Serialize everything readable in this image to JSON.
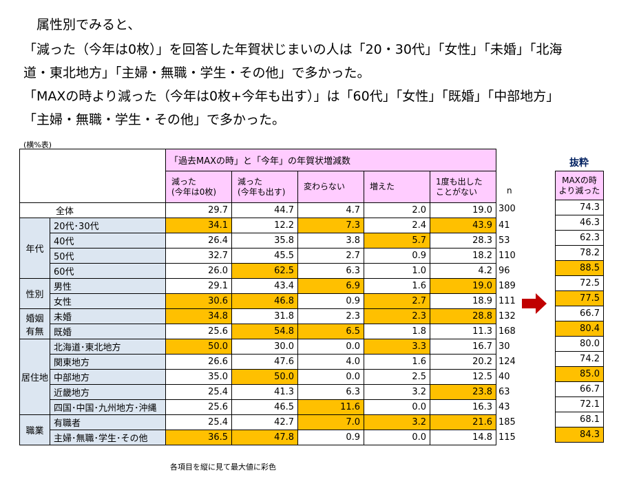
{
  "intro": {
    "line1": "　属性別でみると、",
    "line2": "「減った（今年は0枚）」を回答した年賀状じまいの人は「20・30代」「女性」「未婚」「北海",
    "line3": "道・東北地方」「主婦・無職・学生・その他」で多かった。",
    "line4": "「MAXの時より減った（今年は0枚+今年も出す）」は「60代」「女性」「既婚」「中部地方」",
    "line5": "「主婦・無職・学生・その他」で多かった。"
  },
  "table_note": "(横%表)",
  "bottom_note": "各項目を縦に見て最大値に彩色",
  "highlight_color": "#ffc000",
  "header_color": "#ffccff",
  "group_color": "#dce6f1",
  "chart_data": {
    "type": "table",
    "header_group": "「過去MAXの時」と「今年」の年賀状増減数",
    "columns": [
      "減った\n(今年は0枚)",
      "減った\n(今年も出す)",
      "変わらない",
      "増えた",
      "1度も出した\nことがない"
    ],
    "columns_display": [
      [
        "減った",
        "(今年は0枚)"
      ],
      [
        "減った",
        "(今年も出す)"
      ],
      [
        "変わらない",
        ""
      ],
      [
        "増えた",
        ""
      ],
      [
        "1度も出した",
        "ことがない"
      ]
    ],
    "n_label": "n",
    "extract_title": "抜粋",
    "extract_header": [
      "MAXの時",
      "より減った"
    ],
    "groups": [
      {
        "label": "",
        "rows": [
          {
            "label": "全体",
            "values": [
              29.7,
              44.7,
              4.7,
              2.0,
              19.0
            ],
            "n": 300,
            "extract": 74.3,
            "hl": [
              false,
              false,
              false,
              false,
              false
            ],
            "ex_hl": false
          }
        ]
      },
      {
        "label": "年代",
        "rows": [
          {
            "label": "20代･30代",
            "values": [
              34.1,
              12.2,
              7.3,
              2.4,
              43.9
            ],
            "n": 41,
            "extract": 46.3,
            "hl": [
              true,
              false,
              true,
              false,
              true
            ],
            "ex_hl": false
          },
          {
            "label": "40代",
            "values": [
              26.4,
              35.8,
              3.8,
              5.7,
              28.3
            ],
            "n": 53,
            "extract": 62.3,
            "hl": [
              false,
              false,
              false,
              true,
              false
            ],
            "ex_hl": false
          },
          {
            "label": "50代",
            "values": [
              32.7,
              45.5,
              2.7,
              0.9,
              18.2
            ],
            "n": 110,
            "extract": 78.2,
            "hl": [
              false,
              false,
              false,
              false,
              false
            ],
            "ex_hl": false
          },
          {
            "label": "60代",
            "values": [
              26.0,
              62.5,
              6.3,
              1.0,
              4.2
            ],
            "n": 96,
            "extract": 88.5,
            "hl": [
              false,
              true,
              false,
              false,
              false
            ],
            "ex_hl": true
          }
        ]
      },
      {
        "label": "性別",
        "rows": [
          {
            "label": "男性",
            "values": [
              29.1,
              43.4,
              6.9,
              1.6,
              19.0
            ],
            "n": 189,
            "extract": 72.5,
            "hl": [
              false,
              false,
              true,
              false,
              true
            ],
            "ex_hl": false
          },
          {
            "label": "女性",
            "values": [
              30.6,
              46.8,
              0.9,
              2.7,
              18.9
            ],
            "n": 111,
            "extract": 77.5,
            "hl": [
              true,
              true,
              false,
              true,
              false
            ],
            "ex_hl": true
          }
        ]
      },
      {
        "label": "婚姻\n有無",
        "label_lines": [
          "婚姻",
          "有無"
        ],
        "rows": [
          {
            "label": "未婚",
            "values": [
              34.8,
              31.8,
              2.3,
              2.3,
              28.8
            ],
            "n": 132,
            "extract": 66.7,
            "hl": [
              true,
              false,
              false,
              true,
              true
            ],
            "ex_hl": false
          },
          {
            "label": "既婚",
            "values": [
              25.6,
              54.8,
              6.5,
              1.8,
              11.3
            ],
            "n": 168,
            "extract": 80.4,
            "hl": [
              false,
              true,
              true,
              false,
              false
            ],
            "ex_hl": true
          }
        ]
      },
      {
        "label": "居住地",
        "rows": [
          {
            "label": "北海道･東北地方",
            "values": [
              50.0,
              30.0,
              0.0,
              3.3,
              16.7
            ],
            "n": 30,
            "extract": 80.0,
            "hl": [
              true,
              false,
              false,
              true,
              false
            ],
            "ex_hl": false
          },
          {
            "label": "関東地方",
            "values": [
              26.6,
              47.6,
              4.0,
              1.6,
              20.2
            ],
            "n": 124,
            "extract": 74.2,
            "hl": [
              false,
              false,
              false,
              false,
              false
            ],
            "ex_hl": false
          },
          {
            "label": "中部地方",
            "values": [
              35.0,
              50.0,
              0.0,
              2.5,
              12.5
            ],
            "n": 40,
            "extract": 85.0,
            "hl": [
              false,
              true,
              false,
              false,
              false
            ],
            "ex_hl": true
          },
          {
            "label": "近畿地方",
            "values": [
              25.4,
              41.3,
              6.3,
              3.2,
              23.8
            ],
            "n": 63,
            "extract": 66.7,
            "hl": [
              false,
              false,
              false,
              false,
              true
            ],
            "ex_hl": false
          },
          {
            "label": "四国･中国･九州地方･沖縄",
            "values": [
              25.6,
              46.5,
              11.6,
              0.0,
              16.3
            ],
            "n": 43,
            "extract": 72.1,
            "hl": [
              false,
              false,
              true,
              false,
              false
            ],
            "ex_hl": false
          }
        ]
      },
      {
        "label": "職業",
        "rows": [
          {
            "label": "有職者",
            "values": [
              25.4,
              42.7,
              7.0,
              3.2,
              21.6
            ],
            "n": 185,
            "extract": 68.1,
            "hl": [
              false,
              false,
              true,
              true,
              true
            ],
            "ex_hl": false
          },
          {
            "label": "主婦･無職･学生･その他",
            "values": [
              36.5,
              47.8,
              0.9,
              0.0,
              14.8
            ],
            "n": 115,
            "extract": 84.3,
            "hl": [
              true,
              true,
              false,
              false,
              false
            ],
            "ex_hl": true
          }
        ]
      }
    ]
  }
}
